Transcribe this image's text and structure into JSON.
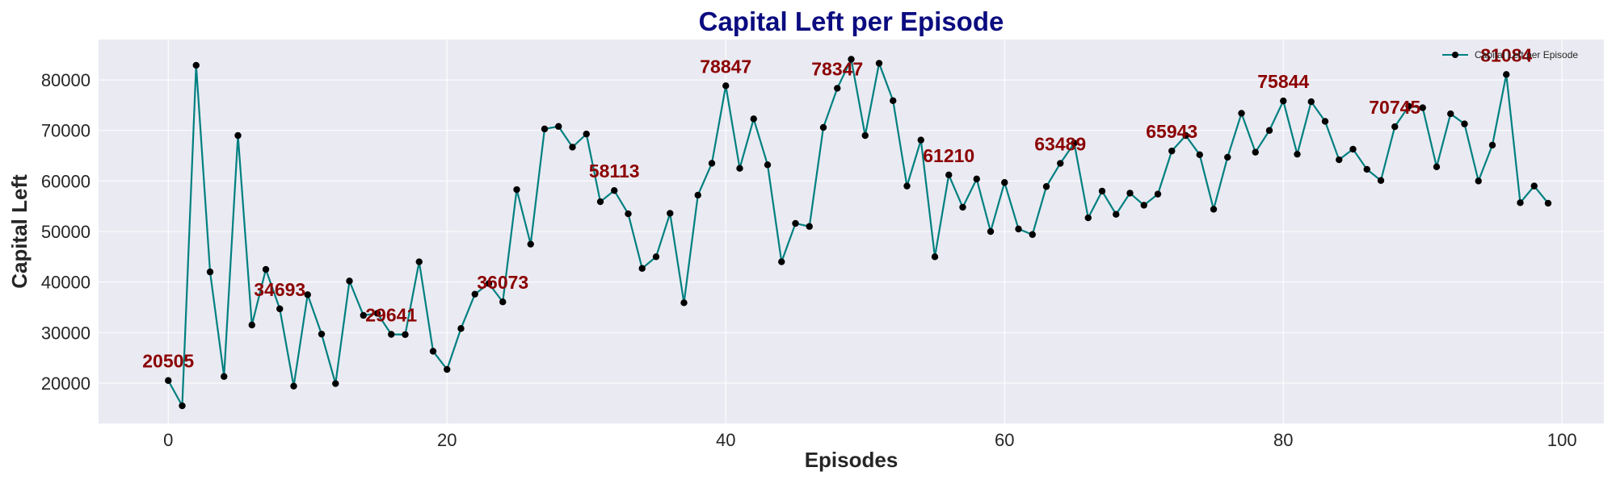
{
  "chart_data": {
    "type": "line",
    "title": "Capital Left per Episode",
    "xlabel": "Episodes",
    "ylabel": "Capital Left",
    "xlim": [
      -5,
      103
    ],
    "ylim": [
      12000,
      88000
    ],
    "xticks": [
      0,
      20,
      40,
      60,
      80,
      100
    ],
    "yticks": [
      20000,
      30000,
      40000,
      50000,
      60000,
      70000,
      80000
    ],
    "grid": true,
    "legend": "upper-right",
    "colors": {
      "line": "#008080",
      "marker": "#000000",
      "annotation": "#8b0000",
      "title": "#0b0b80",
      "plot_bg": "#eaeaf2"
    },
    "series": [
      {
        "name": "Capital Left per Episode",
        "x": [
          0,
          1,
          2,
          3,
          4,
          5,
          6,
          7,
          8,
          9,
          10,
          11,
          12,
          13,
          14,
          15,
          16,
          17,
          18,
          19,
          20,
          21,
          22,
          23,
          24,
          25,
          26,
          27,
          28,
          29,
          30,
          31,
          32,
          33,
          34,
          35,
          36,
          37,
          38,
          39,
          40,
          41,
          42,
          43,
          44,
          45,
          46,
          47,
          48,
          49,
          50,
          51,
          52,
          53,
          54,
          55,
          56,
          57,
          58,
          59,
          60,
          61,
          62,
          63,
          64,
          65,
          66,
          67,
          68,
          69,
          70,
          71,
          72,
          73,
          74,
          75,
          76,
          77,
          78,
          79,
          80,
          81,
          82,
          83,
          84,
          85,
          86,
          87,
          88,
          89,
          90,
          91,
          92,
          93,
          94,
          95,
          96,
          97,
          98,
          99
        ],
        "values": [
          20505,
          15500,
          82900,
          42000,
          21300,
          69000,
          31500,
          42500,
          34693,
          19400,
          37500,
          29700,
          19900,
          40200,
          33400,
          33800,
          29641,
          29600,
          44000,
          26300,
          22700,
          30800,
          37600,
          39700,
          36073,
          58300,
          47500,
          70300,
          70800,
          66700,
          69300,
          55900,
          58113,
          53500,
          42700,
          45000,
          53600,
          35900,
          57200,
          63500,
          78847,
          62500,
          72300,
          63200,
          44000,
          51600,
          51000,
          70600,
          78347,
          84100,
          69000,
          83300,
          75900,
          59000,
          68100,
          45000,
          61210,
          54800,
          60400,
          50000,
          59700,
          50500,
          49400,
          58900,
          63489,
          67500,
          52700,
          58000,
          53400,
          57600,
          55200,
          57400,
          65943,
          69000,
          65200,
          54400,
          64700,
          73400,
          65700,
          70000,
          75844,
          65300,
          75700,
          71800,
          64200,
          66300,
          62300,
          60100,
          70745,
          74800,
          74500,
          62800,
          73300,
          71300,
          60000,
          67100,
          81084,
          55700,
          59000,
          55600
        ]
      }
    ],
    "annotations": [
      {
        "x": 0,
        "y": 20505,
        "text": "20505"
      },
      {
        "x": 8,
        "y": 34693,
        "text": "34693"
      },
      {
        "x": 16,
        "y": 29641,
        "text": "29641"
      },
      {
        "x": 24,
        "y": 36073,
        "text": "36073"
      },
      {
        "x": 32,
        "y": 58113,
        "text": "58113"
      },
      {
        "x": 40,
        "y": 78847,
        "text": "78847"
      },
      {
        "x": 48,
        "y": 78347,
        "text": "78347"
      },
      {
        "x": 56,
        "y": 61210,
        "text": "61210"
      },
      {
        "x": 64,
        "y": 63489,
        "text": "63489"
      },
      {
        "x": 72,
        "y": 65943,
        "text": "65943"
      },
      {
        "x": 80,
        "y": 75844,
        "text": "75844"
      },
      {
        "x": 88,
        "y": 70745,
        "text": "70745"
      },
      {
        "x": 96,
        "y": 81084,
        "text": "81084"
      }
    ]
  }
}
